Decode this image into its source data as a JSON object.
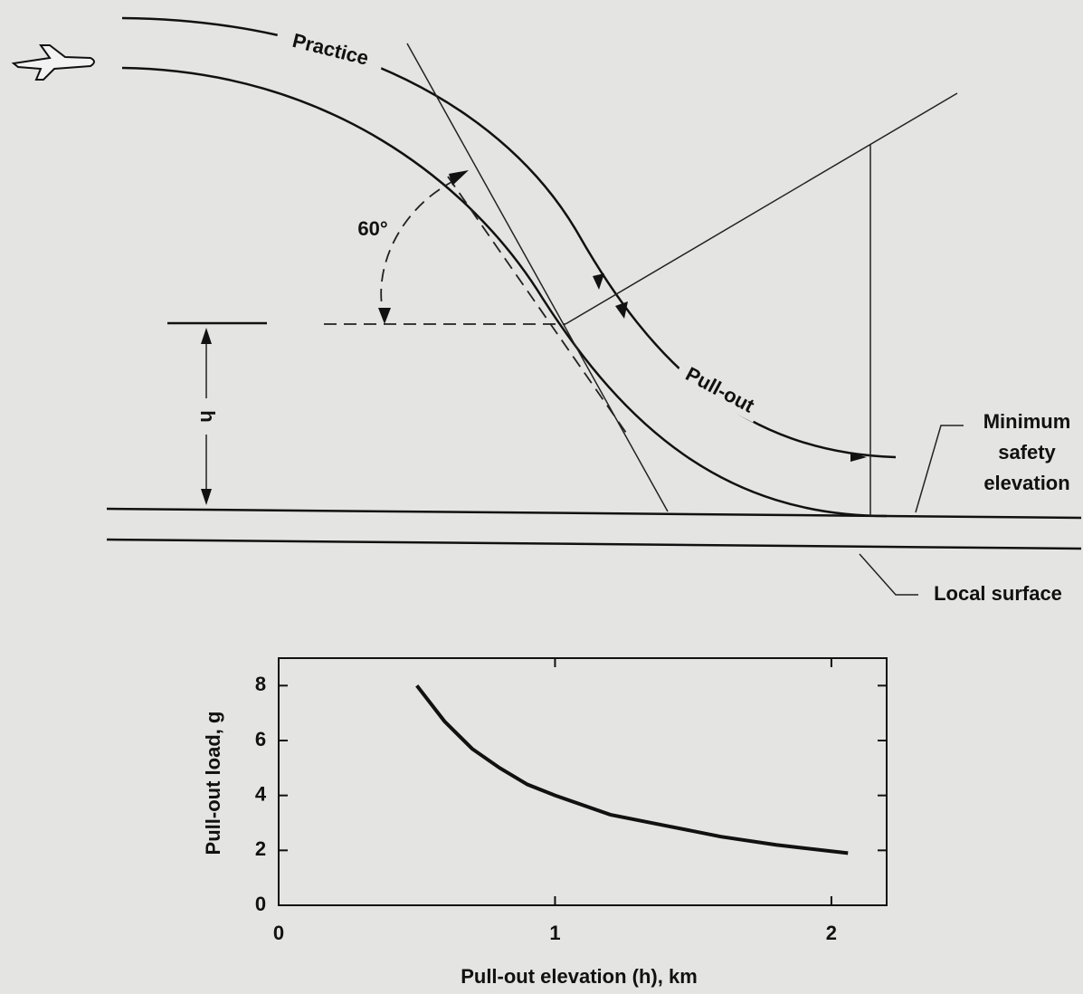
{
  "diagram": {
    "practice": "Practice",
    "angle": "60°",
    "height": "h",
    "pull_out": "Pull-out",
    "minimum_safety_elevation": [
      "Minimum",
      "safety",
      "elevation"
    ],
    "local_surface": "Local surface"
  },
  "chart_data": {
    "type": "line",
    "xlabel": "Pull-out elevation (h), km",
    "ylabel": "Pull-out load, g",
    "x": [
      0.5,
      0.6,
      0.7,
      0.8,
      0.9,
      1.0,
      1.2,
      1.4,
      1.6,
      1.8,
      2.06
    ],
    "series": [
      {
        "color": "#111111",
        "values": [
          8,
          6.7,
          5.7,
          5,
          4.4,
          4,
          3.3,
          2.9,
          2.5,
          2.2,
          1.9
        ]
      }
    ],
    "xlim": [
      0,
      2.2
    ],
    "ylim": [
      0,
      9
    ],
    "xticks": [
      0,
      1,
      2
    ],
    "yticks": [
      0,
      2,
      4,
      6,
      8
    ]
  }
}
